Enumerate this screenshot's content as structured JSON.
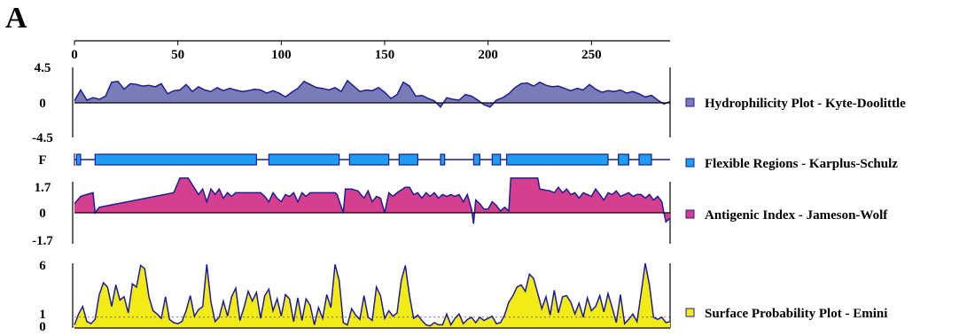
{
  "panel_label": "A",
  "colors": {
    "hydro_fill": "#7a7cb8",
    "flex_fill": "#1e9cf0",
    "antigenic_fill": "#d63f8e",
    "surface_fill": "#f2ec14",
    "line": "#1c1c9a",
    "axis": "#000000"
  },
  "chart_data": [
    {
      "type": "area",
      "name": "hydrophilicity",
      "xlim": [
        0,
        288
      ],
      "x_ticks": [
        "0",
        "50",
        "100",
        "150",
        "200",
        "250"
      ],
      "x_tick_values": [
        0,
        50,
        100,
        150,
        200,
        250
      ],
      "y_ticks": [
        "4.5",
        "0",
        "-4.5"
      ],
      "ylim": [
        -4.5,
        4.5
      ],
      "legend": "Hydrophilicity Plot - Kyte-Doolittle",
      "x": [
        0,
        3,
        6,
        9,
        12,
        15,
        18,
        21,
        24,
        27,
        30,
        33,
        36,
        39,
        42,
        45,
        48,
        51,
        54,
        57,
        60,
        63,
        66,
        69,
        72,
        75,
        78,
        81,
        84,
        87,
        90,
        93,
        96,
        99,
        102,
        105,
        108,
        111,
        114,
        117,
        120,
        123,
        126,
        129,
        132,
        135,
        138,
        141,
        144,
        147,
        150,
        153,
        156,
        159,
        162,
        165,
        168,
        171,
        174,
        177,
        180,
        183,
        186,
        189,
        192,
        195,
        198,
        201,
        204,
        207,
        210,
        213,
        216,
        219,
        222,
        225,
        228,
        231,
        234,
        237,
        240,
        243,
        246,
        249,
        252,
        255,
        258,
        261,
        264,
        267,
        270,
        273,
        276,
        279,
        282,
        285,
        288
      ],
      "values": [
        0.2,
        1.6,
        0.3,
        0.6,
        0.4,
        0.8,
        2.6,
        2.7,
        1.7,
        2.4,
        2.3,
        2.1,
        2.2,
        2.0,
        2.4,
        1.1,
        1.5,
        1.6,
        2.3,
        1.4,
        2.0,
        1.6,
        1.4,
        1.9,
        1.5,
        1.8,
        1.6,
        1.4,
        1.5,
        1.7,
        1.6,
        1.2,
        1.5,
        1.2,
        0.7,
        1.3,
        1.8,
        2.7,
        2.3,
        1.9,
        1.8,
        1.6,
        1.9,
        1.4,
        2.8,
        2.1,
        1.4,
        1.6,
        1.5,
        1.9,
        1.3,
        0.5,
        1.0,
        2.6,
        2.1,
        0.8,
        0.9,
        0.5,
        0.2,
        -0.6,
        0.6,
        0.4,
        0.3,
        1.0,
        0.8,
        0.3,
        -0.3,
        -0.6,
        0.3,
        0.6,
        1.1,
        1.9,
        2.4,
        2.5,
        2.1,
        2.6,
        2.2,
        2.0,
        2.1,
        1.8,
        1.5,
        1.8,
        1.6,
        2.3,
        1.7,
        1.3,
        1.5,
        1.4,
        1.6,
        1.2,
        1.4,
        1.1,
        0.7,
        0.9,
        0.3,
        -0.2,
        0.1
      ]
    },
    {
      "type": "bar",
      "name": "flexible-regions",
      "y_ticks": [
        "F"
      ],
      "legend": "Flexible Regions - Karplus-Schulz",
      "segments": [
        [
          1,
          3
        ],
        [
          10,
          88
        ],
        [
          94,
          128
        ],
        [
          133,
          152
        ],
        [
          157,
          166
        ],
        [
          177,
          179
        ],
        [
          193,
          196
        ],
        [
          202,
          206
        ],
        [
          209,
          258
        ],
        [
          263,
          268
        ],
        [
          273,
          279
        ]
      ]
    },
    {
      "type": "area",
      "name": "antigenic-index",
      "y_ticks": [
        "1.7",
        "0",
        "-1.7"
      ],
      "ylim": [
        -1.7,
        1.7
      ],
      "legend": "Antigenic Index - Jameson-Wolf",
      "x": [
        0,
        3,
        6,
        9,
        10,
        12,
        48,
        51,
        53,
        55,
        60,
        62,
        64,
        66,
        68,
        70,
        72,
        74,
        76,
        78,
        80,
        82,
        84,
        86,
        88,
        90,
        92,
        94,
        96,
        98,
        100,
        102,
        104,
        106,
        108,
        110,
        112,
        114,
        116,
        118,
        120,
        122,
        124,
        126,
        127,
        130,
        131,
        134,
        137,
        140,
        142,
        144,
        146,
        148,
        150,
        152,
        154,
        156,
        160,
        162,
        164,
        166,
        168,
        170,
        172,
        174,
        176,
        178,
        180,
        182,
        184,
        186,
        188,
        190,
        192,
        193,
        194,
        196,
        198,
        200,
        202,
        204,
        206,
        208,
        210,
        211,
        224,
        225,
        230,
        232,
        234,
        236,
        238,
        240,
        242,
        244,
        246,
        248,
        250,
        252,
        254,
        256,
        258,
        260,
        262,
        264,
        266,
        268,
        270,
        272,
        274,
        276,
        278,
        280,
        282,
        284,
        285,
        286,
        288
      ],
      "values": [
        0.5,
        0.9,
        1.0,
        1.1,
        0.0,
        0.3,
        1.1,
        1.9,
        1.9,
        1.9,
        1.0,
        1.3,
        0.6,
        1.3,
        1.0,
        1.3,
        0.8,
        1.1,
        0.9,
        1.1,
        1.1,
        1.1,
        1.1,
        1.1,
        1.1,
        1.1,
        0.9,
        0.6,
        1.1,
        0.8,
        0.6,
        1.0,
        0.9,
        1.1,
        0.6,
        1.1,
        0.9,
        1.1,
        1.1,
        1.1,
        1.1,
        1.1,
        1.1,
        1.1,
        1.0,
        0.0,
        1.3,
        1.3,
        1.2,
        0.8,
        1.2,
        0.6,
        0.9,
        0.8,
        0.0,
        1.1,
        0.9,
        1.1,
        1.4,
        1.4,
        1.0,
        1.1,
        0.8,
        1.1,
        0.9,
        1.1,
        0.8,
        1.0,
        0.9,
        1.0,
        0.9,
        1.0,
        0.6,
        1.0,
        0.2,
        -0.6,
        0.7,
        0.5,
        0.2,
        0.2,
        0.6,
        0.4,
        0.1,
        0.3,
        0.1,
        1.9,
        1.9,
        1.3,
        1.2,
        1.1,
        1.4,
        1.1,
        1.3,
        1.0,
        1.1,
        0.8,
        1.1,
        1.0,
        0.9,
        1.3,
        1.0,
        0.7,
        1.1,
        1.0,
        1.2,
        0.9,
        1.0,
        1.1,
        0.9,
        1.0,
        1.0,
        0.8,
        1.0,
        0.7,
        0.9,
        0.6,
        0.0,
        -0.5,
        -0.3
      ]
    },
    {
      "type": "area",
      "name": "surface-probability",
      "y_ticks": [
        "6",
        "1",
        "0"
      ],
      "ylim": [
        0,
        6
      ],
      "legend": "Surface Probability Plot - Emini",
      "x": [
        0,
        2,
        4,
        6,
        8,
        10,
        12,
        14,
        16,
        18,
        20,
        22,
        24,
        26,
        28,
        30,
        32,
        34,
        36,
        38,
        40,
        42,
        44,
        46,
        48,
        50,
        52,
        54,
        56,
        58,
        60,
        62,
        64,
        66,
        68,
        70,
        72,
        74,
        76,
        78,
        80,
        82,
        84,
        86,
        88,
        90,
        92,
        94,
        96,
        98,
        100,
        102,
        104,
        106,
        108,
        110,
        112,
        114,
        116,
        118,
        120,
        122,
        124,
        126,
        128,
        130,
        132,
        134,
        136,
        138,
        140,
        142,
        144,
        146,
        148,
        150,
        152,
        154,
        156,
        158,
        160,
        162,
        164,
        166,
        168,
        170,
        172,
        174,
        176,
        178,
        180,
        182,
        184,
        186,
        188,
        190,
        192,
        194,
        196,
        198,
        200,
        202,
        204,
        206,
        208,
        210,
        212,
        214,
        216,
        218,
        220,
        222,
        224,
        226,
        228,
        230,
        232,
        234,
        236,
        238,
        240,
        242,
        244,
        246,
        248,
        250,
        252,
        254,
        256,
        258,
        260,
        262,
        264,
        266,
        268,
        270,
        272,
        274,
        276,
        278,
        280,
        282,
        284,
        286,
        288
      ],
      "values": [
        0.3,
        1.3,
        2.0,
        0.6,
        0.4,
        0.8,
        3.1,
        4.2,
        3.8,
        2.0,
        4.0,
        2.6,
        2.9,
        1.4,
        4.1,
        3.8,
        5.8,
        5.5,
        2.9,
        1.6,
        1.3,
        0.9,
        2.9,
        0.8,
        0.5,
        0.4,
        0.6,
        1.6,
        3.0,
        1.1,
        1.7,
        2.0,
        5.9,
        2.4,
        0.6,
        1.0,
        2.5,
        1.1,
        2.9,
        3.7,
        0.7,
        1.9,
        3.4,
        2.5,
        3.3,
        0.9,
        3.0,
        3.6,
        1.6,
        2.7,
        1.1,
        3.1,
        2.7,
        0.6,
        2.8,
        0.7,
        2.7,
        2.1,
        0.3,
        1.9,
        0.9,
        3.1,
        1.9,
        5.9,
        4.4,
        0.5,
        0.3,
        1.8,
        1.2,
        0.8,
        3.0,
        1.0,
        0.7,
        3.8,
        3.0,
        0.9,
        1.6,
        1.1,
        1.4,
        4.4,
        5.8,
        3.0,
        0.9,
        1.2,
        0.7,
        0.3,
        0.2,
        0.5,
        0.3,
        0.3,
        1.3,
        0.3,
        0.9,
        1.3,
        0.4,
        0.8,
        1.0,
        0.5,
        1.0,
        0.7,
        0.9,
        1.1,
        0.4,
        0.5,
        1.2,
        2.4,
        3.0,
        3.8,
        4.0,
        3.4,
        5.0,
        4.6,
        3.2,
        1.8,
        2.9,
        1.2,
        3.5,
        1.4,
        2.9,
        3.0,
        2.4,
        1.3,
        2.3,
        1.0,
        2.8,
        1.6,
        2.0,
        3.0,
        1.5,
        3.2,
        1.9,
        0.5,
        3.1,
        0.4,
        0.8,
        1.3,
        0.6,
        3.2,
        6.0,
        4.0,
        1.0,
        0.8,
        1.0,
        0.5,
        0.6
      ]
    }
  ]
}
